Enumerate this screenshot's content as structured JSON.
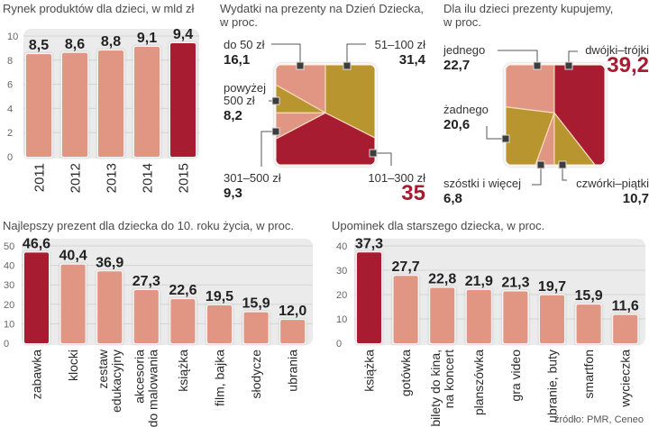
{
  "colors": {
    "salmon": "#e09682",
    "dark_red": "#a81c32",
    "gold": "#b8952e",
    "panel_bg": "#ebebeb",
    "grid": "#d4d4d4",
    "text": "#222222",
    "axis_text": "#666666"
  },
  "source": "źródło: PMR, Ceneo",
  "chart_data": [
    {
      "id": "market",
      "type": "bar",
      "title": "Rynek produktów dla dzieci, w mld zł",
      "categories": [
        "2011",
        "2012",
        "2013",
        "2014",
        "2015"
      ],
      "values": [
        8.5,
        8.6,
        8.8,
        9.1,
        9.4
      ],
      "labels": [
        "8,5",
        "8,6",
        "8,8",
        "9,1",
        "9,4"
      ],
      "highlight_index": 4,
      "yticks": [
        0,
        2,
        4,
        6,
        8,
        10
      ],
      "ylim": [
        0,
        10
      ],
      "xlabel": "",
      "ylabel": "",
      "grid": true
    },
    {
      "id": "spending",
      "type": "pie",
      "title": "Wydatki na prezenty na Dzień Dziecka, w proc.",
      "slices": [
        {
          "label": "do 50 zł",
          "value": 16.1,
          "value_label": "16,1",
          "color": "salmon"
        },
        {
          "label": "51–100 zł",
          "value": 31.4,
          "value_label": "31,4",
          "color": "gold"
        },
        {
          "label": "101–300 zł",
          "value": 35,
          "value_label": "35",
          "color": "dark_red",
          "highlight": true
        },
        {
          "label": "301–500 zł",
          "value": 9.3,
          "value_label": "9,3",
          "color": "salmon"
        },
        {
          "label": "powyżej 500 zł",
          "value": 8.2,
          "value_label": "8,2",
          "color": "gold"
        }
      ]
    },
    {
      "id": "children",
      "type": "pie",
      "title": "Dla ilu dzieci prezenty kupujemy, w proc.",
      "slices": [
        {
          "label": "dwójki–trójki",
          "value": 39.2,
          "value_label": "39,2",
          "color": "dark_red",
          "highlight": true
        },
        {
          "label": "czwórki–piątki",
          "value": 10.7,
          "value_label": "10,7",
          "color": "gold"
        },
        {
          "label": "szóstki i więcej",
          "value": 6.8,
          "value_label": "6,8",
          "color": "salmon"
        },
        {
          "label": "żadnego",
          "value": 20.6,
          "value_label": "20,6",
          "color": "gold"
        },
        {
          "label": "jednego",
          "value": 22.7,
          "value_label": "22,7",
          "color": "salmon"
        }
      ]
    },
    {
      "id": "best_gift",
      "type": "bar",
      "title": "Najlepszy prezent dla dziecka do 10. roku życia, w proc.",
      "categories": [
        "zabawka",
        "klocki",
        "zestaw edukacyjny",
        "akcesoria do malowania",
        "książka",
        "film, bajka",
        "słodycze",
        "ubrania"
      ],
      "category_lines": [
        [
          "zabawka"
        ],
        [
          "klocki"
        ],
        [
          "zestaw",
          "edukacyjny"
        ],
        [
          "akcesoria",
          "do malowania"
        ],
        [
          "książka"
        ],
        [
          "film, bajka"
        ],
        [
          "słodycze"
        ],
        [
          "ubrania"
        ]
      ],
      "values": [
        46.6,
        40.4,
        36.9,
        27.3,
        22.6,
        19.5,
        15.9,
        12.0
      ],
      "labels": [
        "46,6",
        "40,4",
        "36,9",
        "27,3",
        "22,6",
        "19,5",
        "15,9",
        "12,0"
      ],
      "highlight_index": 0,
      "yticks": [
        0,
        10,
        20,
        30,
        40,
        50
      ],
      "ylim": [
        0,
        50
      ],
      "xlabel": "",
      "ylabel": "",
      "grid": true
    },
    {
      "id": "older_child",
      "type": "bar",
      "title": "Upominek dla starszego dziecka, w proc.",
      "categories": [
        "książka",
        "gotówka",
        "bilety do kina, na koncert",
        "planszówka",
        "gra video",
        "ubranie, buty",
        "smartfon",
        "wycieczka"
      ],
      "category_lines": [
        [
          "książka"
        ],
        [
          "gotówka"
        ],
        [
          "bilety do kina,",
          "na koncert"
        ],
        [
          "planszówka"
        ],
        [
          "gra video"
        ],
        [
          "ubranie, buty"
        ],
        [
          "smartfon"
        ],
        [
          "wycieczka"
        ]
      ],
      "values": [
        37.3,
        27.7,
        22.8,
        21.9,
        21.3,
        19.7,
        15.9,
        11.6
      ],
      "labels": [
        "37,3",
        "27,7",
        "22,8",
        "21,9",
        "21,3",
        "19,7",
        "15,9",
        "11,6"
      ],
      "highlight_index": 0,
      "yticks": [
        0,
        10,
        20,
        30,
        40
      ],
      "ylim": [
        0,
        40
      ],
      "xlabel": "",
      "ylabel": "",
      "grid": true
    }
  ]
}
